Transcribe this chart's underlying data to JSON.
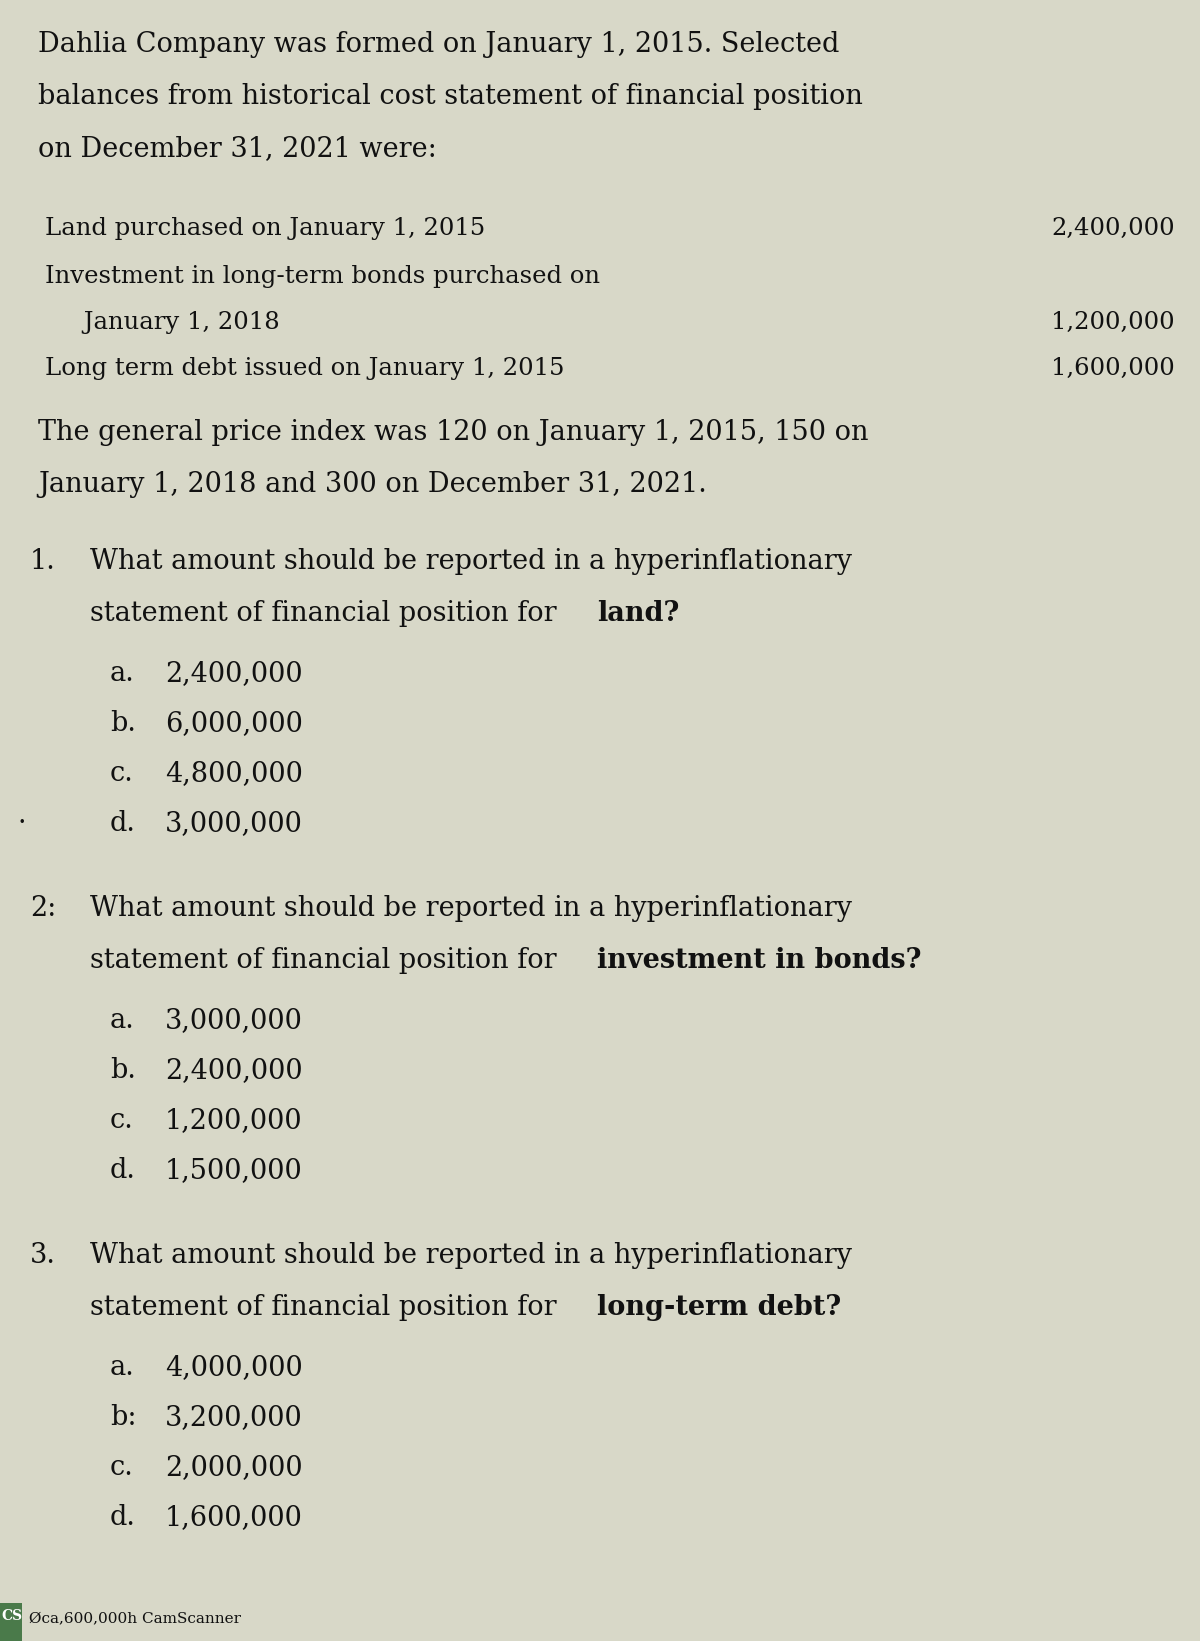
{
  "background_color": "#d8d8c8",
  "text_color": "#111111",
  "header_lines": [
    "Dahlia Company was formed on January 1, 2015. Selected",
    "balances from historical cost statement of financial position",
    "on December 31, 2021 were:"
  ],
  "items": [
    {
      "label": "Land purchased on January 1, 2015",
      "label2": null,
      "value": "2,400,000",
      "indent": 0.45
    },
    {
      "label": "Investment in long-term bonds purchased on",
      "label2": "     January 1, 2018",
      "value": "1,200,000",
      "indent": 0.45
    },
    {
      "label": "Long term debt issued on January 1, 2015",
      "label2": null,
      "value": "1,600,000",
      "indent": 0.45
    }
  ],
  "price_index_text": [
    "The general price index was 120 on January 1, 2015, 150 on",
    "January 1, 2018 and 300 on December 31, 2021."
  ],
  "questions": [
    {
      "number": "1.",
      "text": "What amount should be reported in a hyperinflationary",
      "text2": "statement of financial position for ",
      "bold_end": "land?",
      "dot_before_d": true,
      "choices": [
        {
          "letter": "a.",
          "value": "2,400,000"
        },
        {
          "letter": "b.",
          "value": "6,000,000"
        },
        {
          "letter": "c.",
          "value": "4,800,000"
        },
        {
          "letter": "d.",
          "value": "3,000,000"
        }
      ]
    },
    {
      "number": "2:",
      "text": "What amount should be reported in a hyperinflationary",
      "text2": "statement of financial position for ",
      "bold_end": "investment in bonds?",
      "dot_before_d": false,
      "choices": [
        {
          "letter": "a.",
          "value": "3,000,000"
        },
        {
          "letter": "b.",
          "value": "2,400,000"
        },
        {
          "letter": "c.",
          "value": "1,200,000"
        },
        {
          "letter": "d.",
          "value": "1,500,000"
        }
      ]
    },
    {
      "number": "3.",
      "text": "What amount should be reported in a hyperinflationary",
      "text2": "statement of financial position for ",
      "bold_end": "long-term debt?",
      "dot_before_d": false,
      "choices": [
        {
          "letter": "a.",
          "value": "4,000,000"
        },
        {
          "letter": "b:",
          "value": "3,200,000"
        },
        {
          "letter": "c.",
          "value": "2,000,000"
        },
        {
          "letter": "d.",
          "value": "1,600,000"
        }
      ]
    }
  ],
  "footer_text": "CS Øca,600,000h CamScanner",
  "base_fontsize": 19.5,
  "item_fontsize": 17.5,
  "choice_fontsize": 19.5
}
